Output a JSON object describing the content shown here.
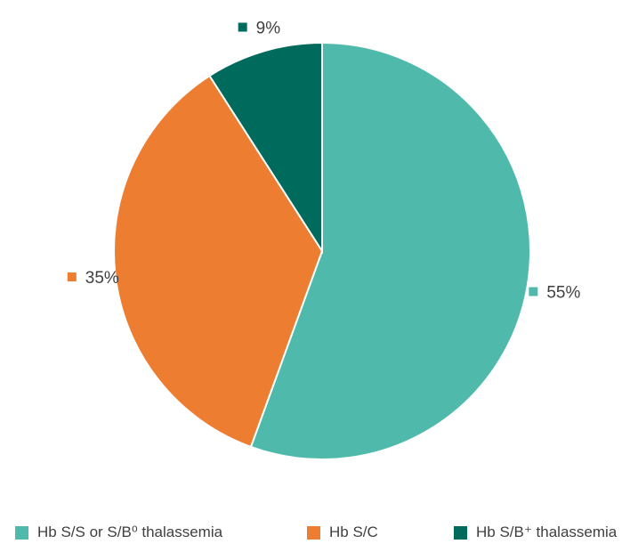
{
  "chart_data": {
    "type": "pie",
    "title": "",
    "slices": [
      {
        "label": "Hb S/S or S/B⁰ thalassemia",
        "value": 55,
        "data_label": "55%",
        "color": "#4fbaab"
      },
      {
        "label": "Hb S/C",
        "value": 35,
        "data_label": "35%",
        "color": "#ed7d31"
      },
      {
        "label": "Hb S/B⁺ thalassemia",
        "value": 9,
        "data_label": "9%",
        "color": "#006b5c"
      }
    ],
    "start_angle": "12 o'clock",
    "direction": "clockwise",
    "legend_position": "bottom"
  },
  "legend": {
    "items": [
      {
        "label": "Hb S/S or S/B⁰ thalassemia",
        "color": "#4fbaab"
      },
      {
        "label": "Hb S/C",
        "color": "#ed7d31"
      },
      {
        "label": "Hb S/B⁺ thalassemia",
        "color": "#006b5c"
      }
    ]
  }
}
